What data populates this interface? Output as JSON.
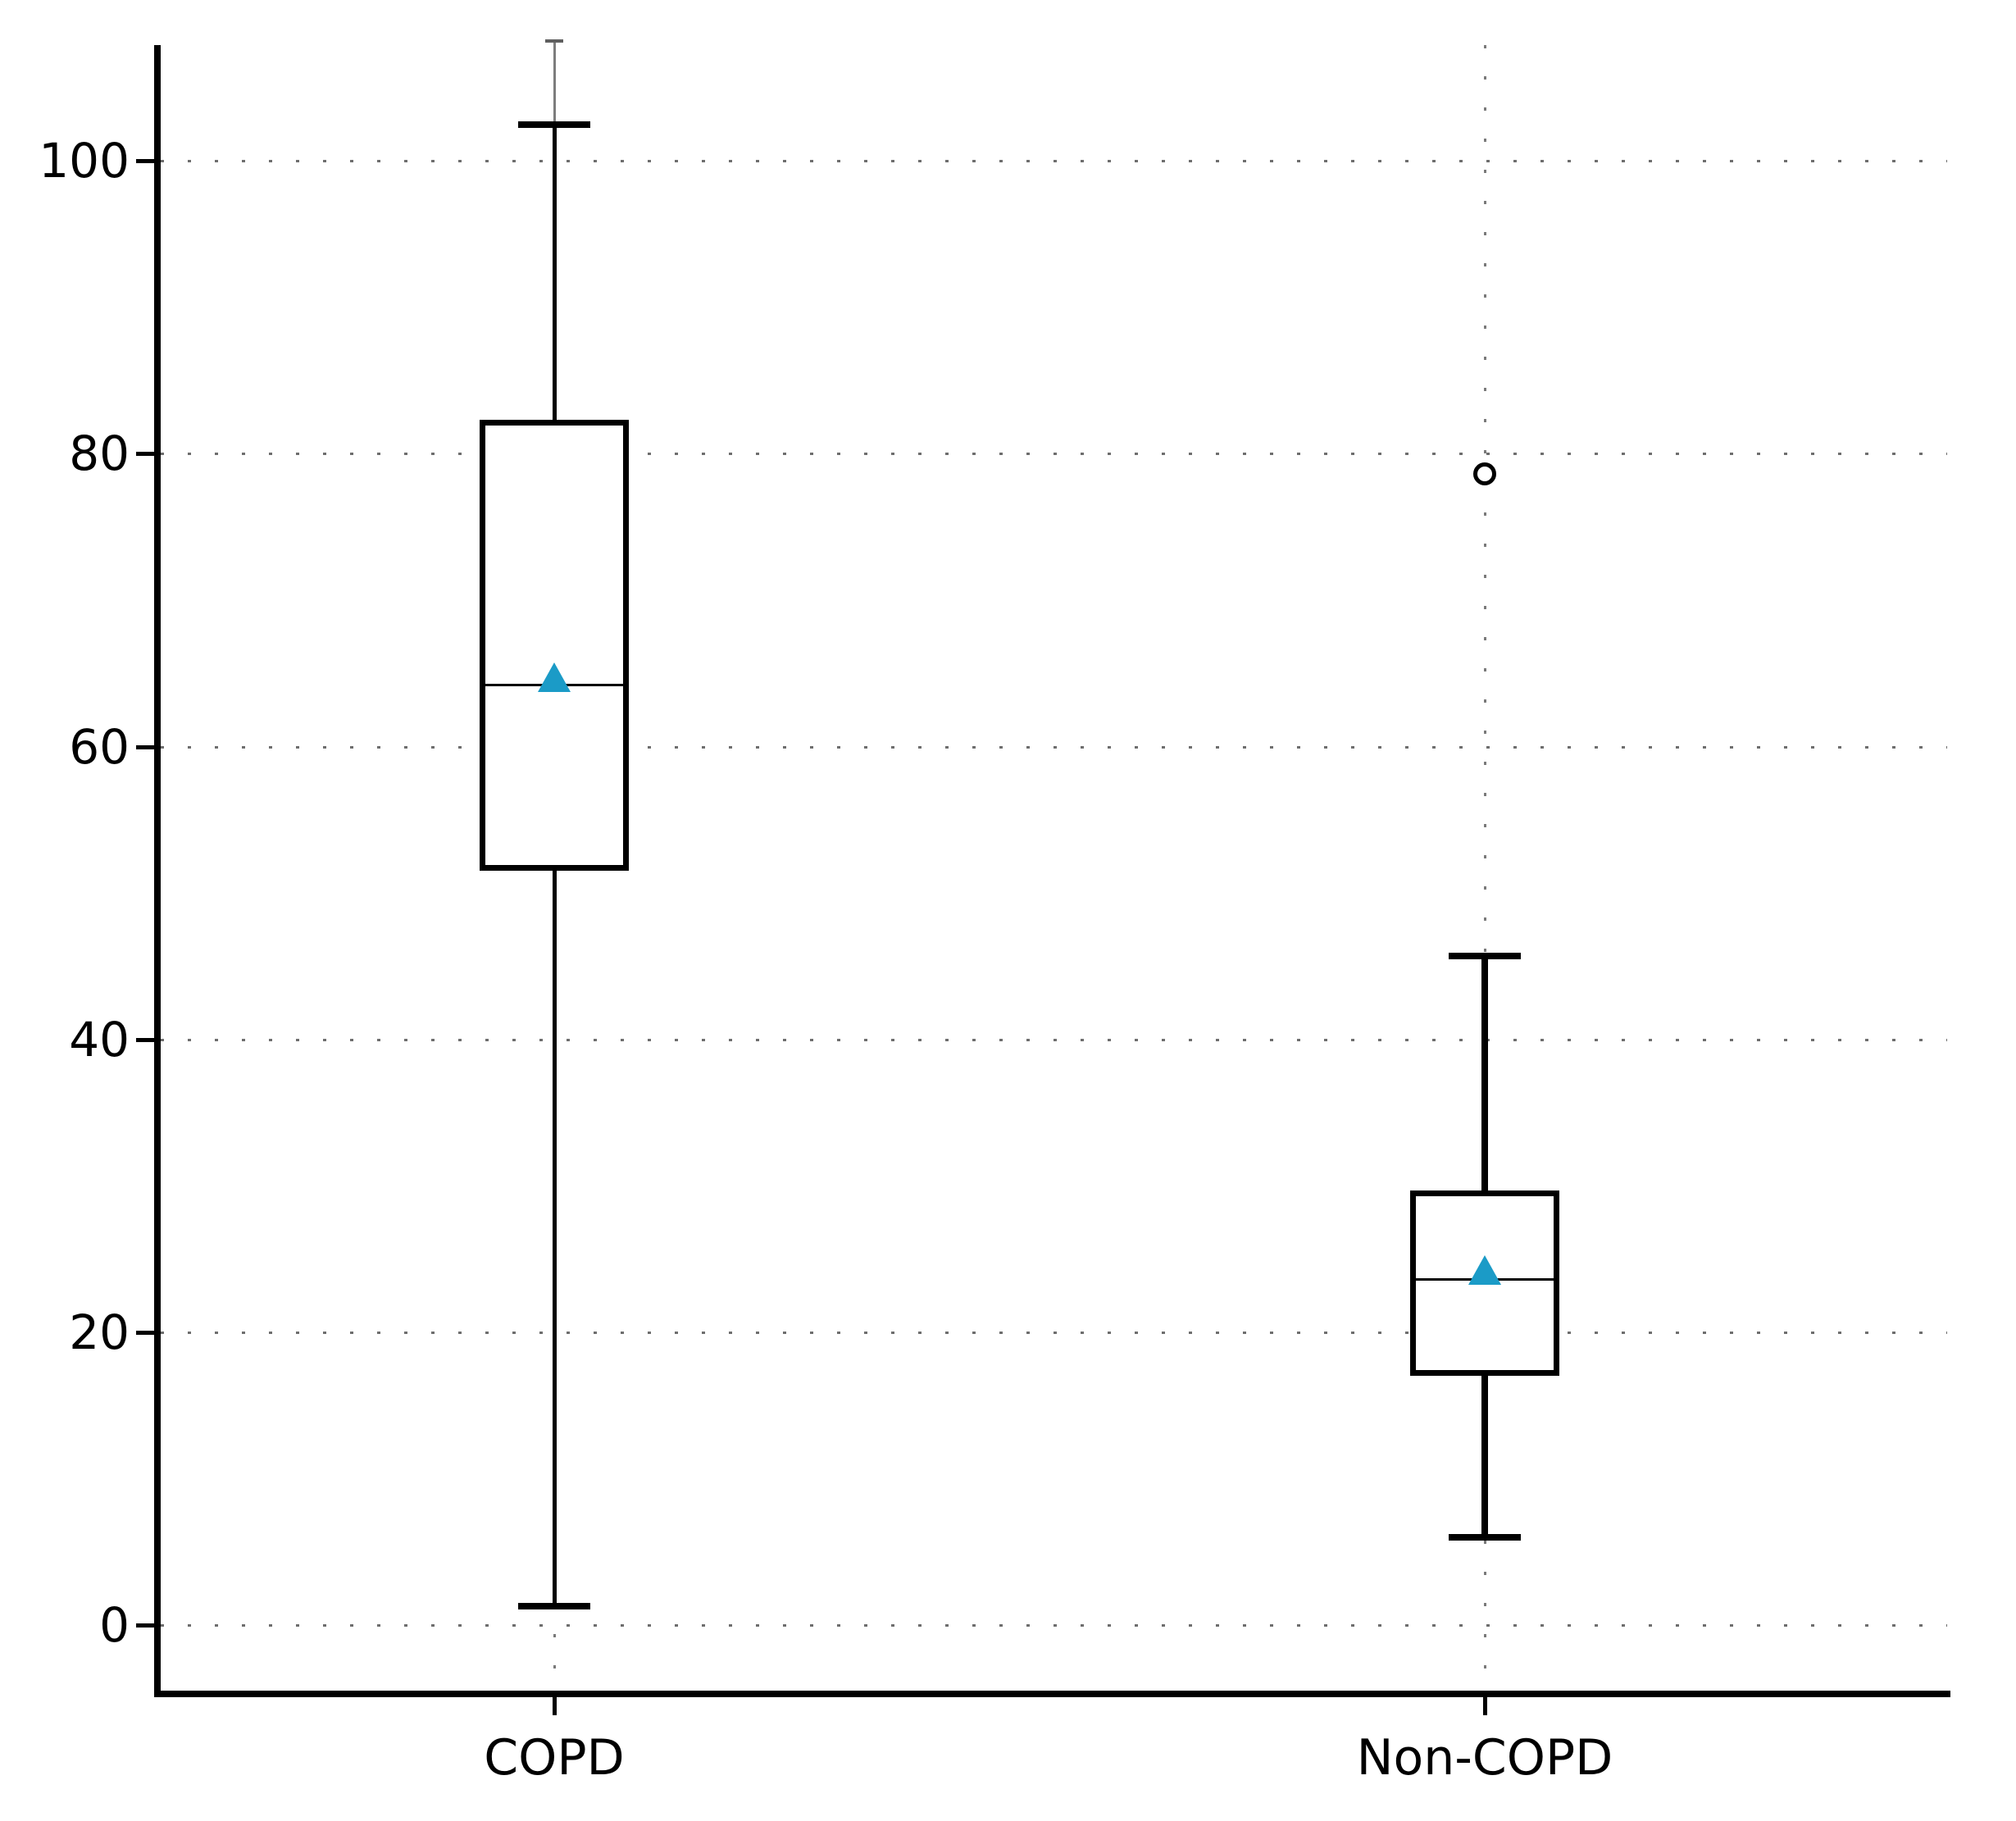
{
  "figure": {
    "background_color": "#ffffff",
    "axis_color": "#000000",
    "gridline_color": "#6e6e6e",
    "grid_style": "dotted"
  },
  "axes": {
    "y": {
      "tick_labels": [
        "100",
        "80",
        "60",
        "40",
        "20",
        "0"
      ],
      "tick_values": [
        100,
        80,
        60,
        40,
        20,
        0
      ]
    },
    "x": {
      "tick_labels": [
        "COPD",
        "Non-COPD"
      ]
    }
  },
  "chart_data": {
    "type": "boxplot",
    "title": "",
    "xlabel": "",
    "ylabel": "",
    "categories": [
      "COPD",
      "Non-COPD"
    ],
    "yticks": [
      0,
      20,
      40,
      60,
      80,
      100
    ],
    "ylim": [
      -4.7,
      108.5
    ],
    "grid": "dotted horizontal gridlines at each ytick and dotted vertical gridline at each category center",
    "legend_position": "none",
    "mean_marker": {
      "shape": "triangle-up",
      "color": "#1b9bc7"
    },
    "series": [
      {
        "name": "COPD",
        "whisker_low": 1.3,
        "q1": 51.5,
        "median": 64.2,
        "mean": 64.7,
        "q3": 82.3,
        "whisker_high": 102.5,
        "thin_whisker_top": 108.2,
        "outliers": []
      },
      {
        "name": "Non-COPD",
        "whisker_low": 6.0,
        "q1": 17.0,
        "median": 23.6,
        "mean": 24.2,
        "q3": 29.7,
        "whisker_high": 45.7,
        "outliers": [
          78.6
        ]
      }
    ]
  }
}
